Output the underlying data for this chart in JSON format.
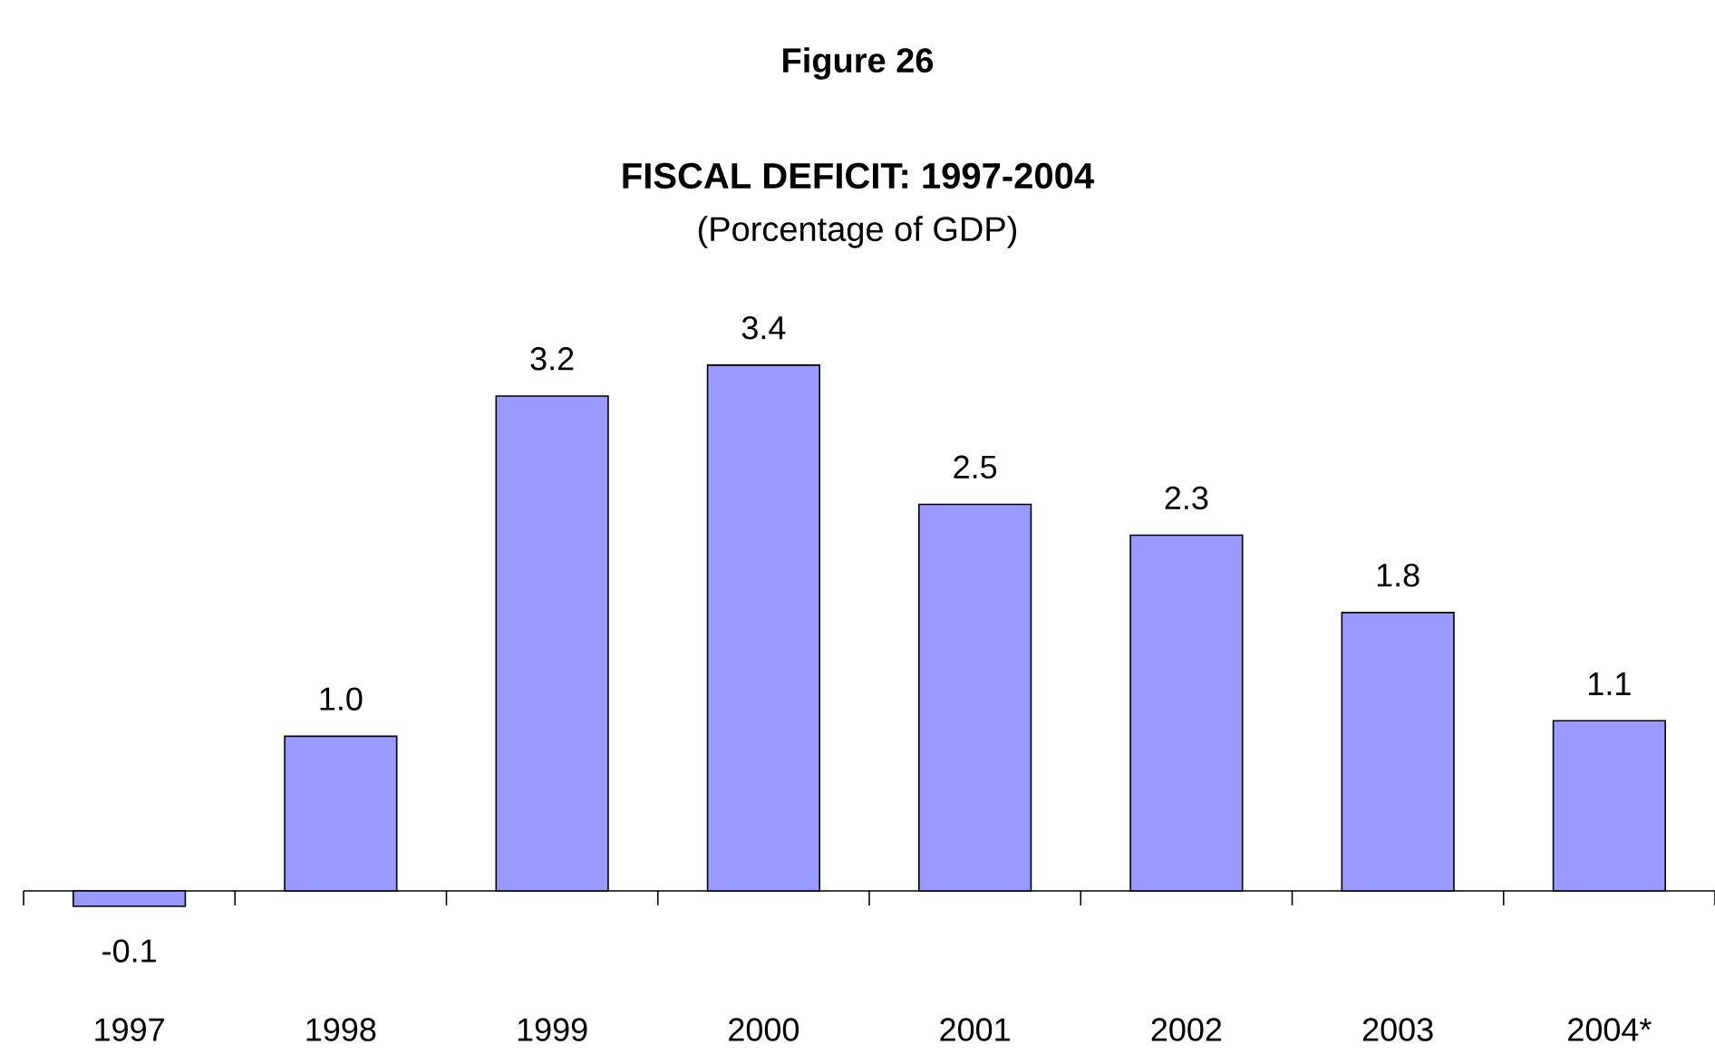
{
  "chart_data": {
    "type": "bar",
    "title": "FISCAL DEFICIT: 1997-2004",
    "subtitle": "(Porcentage of GDP)",
    "annotations": [
      "Figure 26"
    ],
    "categories": [
      "1997",
      "1998",
      "1999",
      "2000",
      "2001",
      "2002",
      "2003",
      "2004*"
    ],
    "values": [
      -0.1,
      1.0,
      3.2,
      3.4,
      2.5,
      2.3,
      1.8,
      1.1
    ],
    "value_labels": [
      "-0.1",
      "1.0",
      "3.2",
      "3.4",
      "2.5",
      "2.3",
      "1.8",
      "1.1"
    ],
    "color": "#9999ff",
    "tick_labels": "x"
  }
}
